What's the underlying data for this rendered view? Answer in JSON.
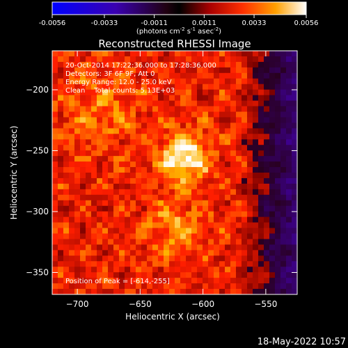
{
  "colorbar": {
    "ticks": [
      "-0.0056",
      "-0.0033",
      "-0.0011",
      "0.0011",
      "0.0033",
      "0.0056"
    ],
    "units_main": "(photons cm",
    "units_sup1": "-2",
    "units_mid": " s",
    "units_sup2": "-1",
    "units_end": " asec",
    "units_sup3": "-2",
    "units_close": ")",
    "range": [
      -0.0056,
      0.0056
    ]
  },
  "chart_data": {
    "type": "heatmap",
    "title": "Reconstructed RHESSI Image",
    "xlabel": "Heliocentric X (arcsec)",
    "ylabel": "Heliocentric Y (arcsec)",
    "xlim": [
      -720,
      -525
    ],
    "ylim": [
      -368,
      -168
    ],
    "xticks": [
      -700,
      -650,
      -600,
      -550
    ],
    "yticks": [
      -350,
      -300,
      -250,
      -200
    ],
    "xtick_labels": [
      "−700",
      "−650",
      "−600",
      "−550"
    ],
    "ytick_labels": [
      "−350",
      "−300",
      "−250",
      "−200"
    ],
    "peak": [
      -614,
      -255
    ],
    "colormap": "hot-with-blue-negatives",
    "info_lines": [
      "20-Oct-2014 17:22:36.000 to 17:28:36.000",
      "Detectors: 3F 6F 9F, Att 0",
      "Energy Range: 12.0 - 25.0 keV",
      "Clean    Total counts: 5.13E+03"
    ],
    "peak_label": "Position of Peak = [-614,-255]"
  },
  "timestamp": "18-May-2022 10:57"
}
